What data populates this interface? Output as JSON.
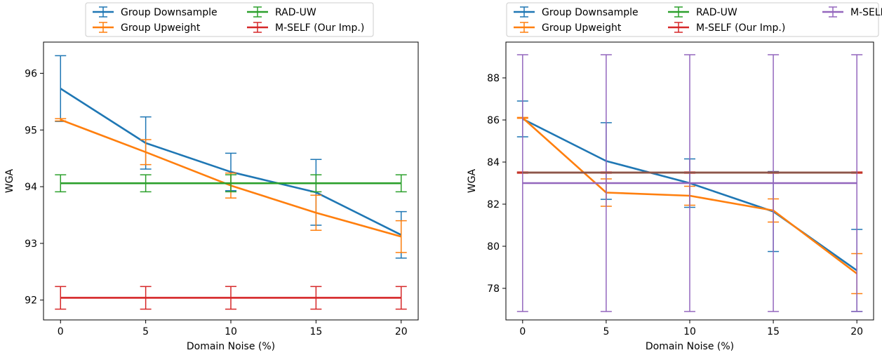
{
  "chart_data": [
    {
      "type": "line",
      "xlabel": "Domain Noise (%)",
      "ylabel": "WGA",
      "x": [
        0,
        5,
        10,
        15,
        20
      ],
      "xlim": [
        -1,
        21
      ],
      "ylim": [
        91.65,
        96.55
      ],
      "yticks": [
        92,
        93,
        94,
        95,
        96
      ],
      "legend_position": "top-outside",
      "legend_columns": 2,
      "grid": false,
      "series": [
        {
          "name": "Group Downsample",
          "color": "#1f77b4",
          "y": [
            95.73,
            94.77,
            94.26,
            93.9,
            93.15
          ],
          "err": [
            0.58,
            0.46,
            0.33,
            0.58,
            0.41
          ]
        },
        {
          "name": "Group Upweight",
          "color": "#ff7f0e",
          "y": [
            95.18,
            94.61,
            94.02,
            93.54,
            93.12
          ],
          "err": [
            0.02,
            0.22,
            0.22,
            0.31,
            0.28
          ]
        },
        {
          "name": "RAD-UW",
          "color": "#2ca02c",
          "y": [
            94.06,
            94.06,
            94.06,
            94.06,
            94.06
          ],
          "err": [
            0.15,
            0.15,
            0.15,
            0.15,
            0.15
          ]
        },
        {
          "name": "M-SELF (Our Imp.)",
          "color": "#d62728",
          "y": [
            92.04,
            92.04,
            92.04,
            92.04,
            92.04
          ],
          "err": [
            0.2,
            0.2,
            0.2,
            0.2,
            0.2
          ]
        }
      ]
    },
    {
      "type": "line",
      "xlabel": "Domain Noise (%)",
      "ylabel": "WGA",
      "x": [
        0,
        5,
        10,
        15,
        20
      ],
      "xlim": [
        -1,
        21
      ],
      "ylim": [
        76.5,
        89.7
      ],
      "yticks": [
        78,
        80,
        82,
        84,
        86,
        88
      ],
      "legend_position": "top-outside",
      "legend_columns": 3,
      "grid": false,
      "series": [
        {
          "name": "Group Downsample",
          "color": "#1f77b4",
          "y": [
            86.05,
            84.05,
            83.0,
            81.65,
            78.85
          ],
          "err": [
            0.85,
            1.82,
            1.15,
            1.9,
            1.95
          ]
        },
        {
          "name": "Group Upweight",
          "color": "#ff7f0e",
          "y": [
            86.1,
            82.55,
            82.4,
            81.7,
            78.7
          ],
          "err": [
            0.02,
            0.65,
            0.45,
            0.55,
            0.95
          ]
        },
        {
          "name": "RAD-UW",
          "color": "#2ca02c",
          "y": [
            83.5,
            83.5,
            83.5,
            83.5,
            83.5
          ],
          "err": [
            0.02,
            0.02,
            0.02,
            0.02,
            0.02
          ]
        },
        {
          "name": "M-SELF (Our Imp.)",
          "color": "#d62728",
          "y": [
            83.5,
            83.5,
            83.5,
            83.5,
            83.5
          ],
          "err": [
            0.03,
            0.03,
            0.03,
            0.03,
            0.03
          ]
        },
        {
          "name": "M-SELF",
          "color": "#9467bd",
          "y": [
            83.0,
            83.0,
            83.0,
            83.0,
            83.0
          ],
          "err": [
            6.1,
            6.1,
            6.1,
            6.1,
            6.1
          ]
        }
      ],
      "line_only": [
        "Group Downsample",
        "Group Upweight",
        "M-SELF",
        "RAD-UW",
        "M-SELF (Our Imp.)"
      ],
      "overlay_line": {
        "color": "#8c564b",
        "y": 83.5
      }
    }
  ]
}
